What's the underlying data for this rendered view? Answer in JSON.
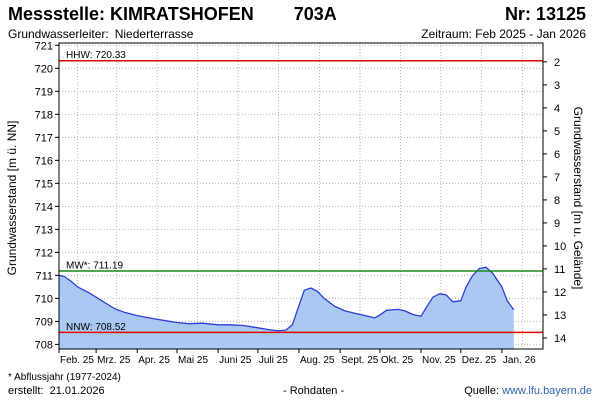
{
  "header": {
    "station_label": "Messstelle: KIMRATSHOFEN",
    "station_code": "703A",
    "nr_label": "Nr: 13125",
    "aquifer_label": "Grundwasserleiter:",
    "aquifer_value": "Niederterrasse",
    "period_label": "Zeitraum: Feb 2025 - Jan 2026"
  },
  "footer": {
    "footnote": "* Abflussjahr (1977-2024)",
    "created_label": "erstellt:",
    "created_date": "21.01.2026",
    "raw_label": "- Rohdaten -",
    "source_label": "Quelle:",
    "source_link": "www.lfu.bayern.de"
  },
  "colors": {
    "fill": "#a9c9f2",
    "line": "#2b3fd6",
    "hhw": "#e00000",
    "nnw": "#e00000",
    "mw": "#1a8a1a",
    "grid": "#b4b4b4"
  },
  "chart_data": {
    "type": "area",
    "ylabel": "Grundwasserstand [m ü. NN]",
    "ylabel_right": "Grundwasserstand [m u. Gelände]",
    "ylim": [
      707.8,
      721.1
    ],
    "yticks": [
      708,
      709,
      710,
      711,
      712,
      713,
      714,
      715,
      716,
      717,
      718,
      719,
      720,
      721
    ],
    "ytick_labels": [
      "708",
      "709",
      "710",
      "711",
      "712",
      "713",
      "714",
      "715",
      "716",
      "717",
      "718",
      "719",
      "720",
      "721"
    ],
    "right_ticks": [
      {
        "value": 720.28,
        "label": "2"
      },
      {
        "value": 719.28,
        "label": "3"
      },
      {
        "value": 718.28,
        "label": "4"
      },
      {
        "value": 717.28,
        "label": "5"
      },
      {
        "value": 716.28,
        "label": "6"
      },
      {
        "value": 715.28,
        "label": "7"
      },
      {
        "value": 714.28,
        "label": "8"
      },
      {
        "value": 713.28,
        "label": "9"
      },
      {
        "value": 712.28,
        "label": "10"
      },
      {
        "value": 711.28,
        "label": "11"
      },
      {
        "value": 710.28,
        "label": "12"
      },
      {
        "value": 709.28,
        "label": "13"
      },
      {
        "value": 708.28,
        "label": "14"
      }
    ],
    "xlim": [
      "2025-02-01",
      "2026-01-31"
    ],
    "xticks": [
      "2025-02-01",
      "2025-03-01",
      "2025-04-01",
      "2025-05-01",
      "2025-06-01",
      "2025-07-01",
      "2025-08-01",
      "2025-09-01",
      "2025-10-01",
      "2025-11-01",
      "2025-12-01",
      "2026-01-01"
    ],
    "xtick_labels": [
      "Feb. 25",
      "Mrz. 25",
      "Apr. 25",
      "Mai 25",
      "Juni 25",
      "Juli 25",
      "Aug. 25",
      "Sept. 25",
      "Okt. 25",
      "Nov. 25",
      "Dez. 25",
      "Jan. 26"
    ],
    "grid": true,
    "reference_lines": [
      {
        "label": "HHW: 720.33",
        "value": 720.33
      },
      {
        "label": "MW*: 711.19",
        "value": 711.19
      },
      {
        "label": "NNW: 708.52",
        "value": 708.52
      }
    ],
    "series": [
      {
        "x": [
          "2025-02-01",
          "2025-02-05",
          "2025-02-10",
          "2025-02-15",
          "2025-02-20",
          "2025-02-25",
          "2025-03-01",
          "2025-03-08",
          "2025-03-15",
          "2025-03-22",
          "2025-04-01",
          "2025-04-10",
          "2025-04-20",
          "2025-05-01",
          "2025-05-10",
          "2025-05-20",
          "2025-06-01",
          "2025-06-10",
          "2025-06-20",
          "2025-07-01",
          "2025-07-08",
          "2025-07-15",
          "2025-07-18",
          "2025-07-22",
          "2025-07-27",
          "2025-08-01",
          "2025-08-05",
          "2025-08-10",
          "2025-08-15",
          "2025-08-20",
          "2025-08-28",
          "2025-09-05",
          "2025-09-12",
          "2025-09-20",
          "2025-09-27",
          "2025-10-01",
          "2025-10-06",
          "2025-10-10",
          "2025-10-15",
          "2025-10-20",
          "2025-10-26",
          "2025-11-01",
          "2025-11-06",
          "2025-11-10",
          "2025-11-15",
          "2025-11-20",
          "2025-11-25",
          "2025-12-01",
          "2025-12-05",
          "2025-12-10",
          "2025-12-15",
          "2025-12-20",
          "2025-12-25",
          "2026-01-01",
          "2026-01-05",
          "2026-01-10"
        ],
        "y": [
          711.0,
          710.95,
          710.75,
          710.5,
          710.35,
          710.2,
          710.05,
          709.8,
          709.55,
          709.4,
          709.25,
          709.15,
          709.05,
          708.95,
          708.9,
          708.92,
          708.85,
          708.85,
          708.82,
          708.72,
          708.65,
          708.6,
          708.6,
          708.62,
          708.85,
          709.7,
          710.35,
          710.45,
          710.3,
          710.0,
          709.65,
          709.45,
          709.35,
          709.25,
          709.15,
          709.28,
          709.48,
          709.5,
          709.52,
          709.45,
          709.3,
          709.22,
          709.7,
          710.05,
          710.2,
          710.15,
          709.85,
          709.9,
          710.5,
          711.0,
          711.3,
          711.35,
          711.1,
          710.5,
          709.9,
          709.5
        ]
      }
    ]
  }
}
